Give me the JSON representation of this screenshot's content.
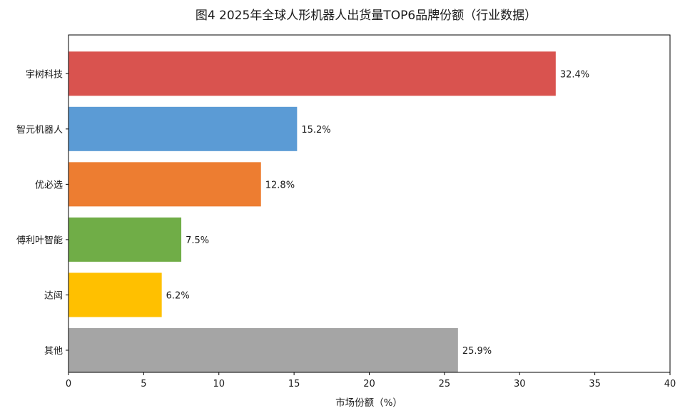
{
  "chart_data": {
    "type": "bar",
    "orientation": "horizontal",
    "title": "图4 2025年全球人形机器人出货量TOP6品牌份额（行业数据）",
    "xlabel": "市场份额（%）",
    "ylabel": "",
    "xlim": [
      0,
      40
    ],
    "xticks": [
      0,
      5,
      10,
      15,
      20,
      25,
      30,
      35,
      40
    ],
    "grid": false,
    "categories": [
      "宇树科技",
      "智元机器人",
      "优必选",
      "傅利叶智能",
      "达闼",
      "其他"
    ],
    "values": [
      32.4,
      15.2,
      12.8,
      7.5,
      6.2,
      25.9
    ],
    "value_labels": [
      "32.4%",
      "15.2%",
      "12.8%",
      "7.5%",
      "6.2%",
      "25.9%"
    ],
    "colors": [
      "#d9534f",
      "#5b9bd5",
      "#ed7d31",
      "#70ad47",
      "#ffc000",
      "#a5a5a5"
    ]
  }
}
